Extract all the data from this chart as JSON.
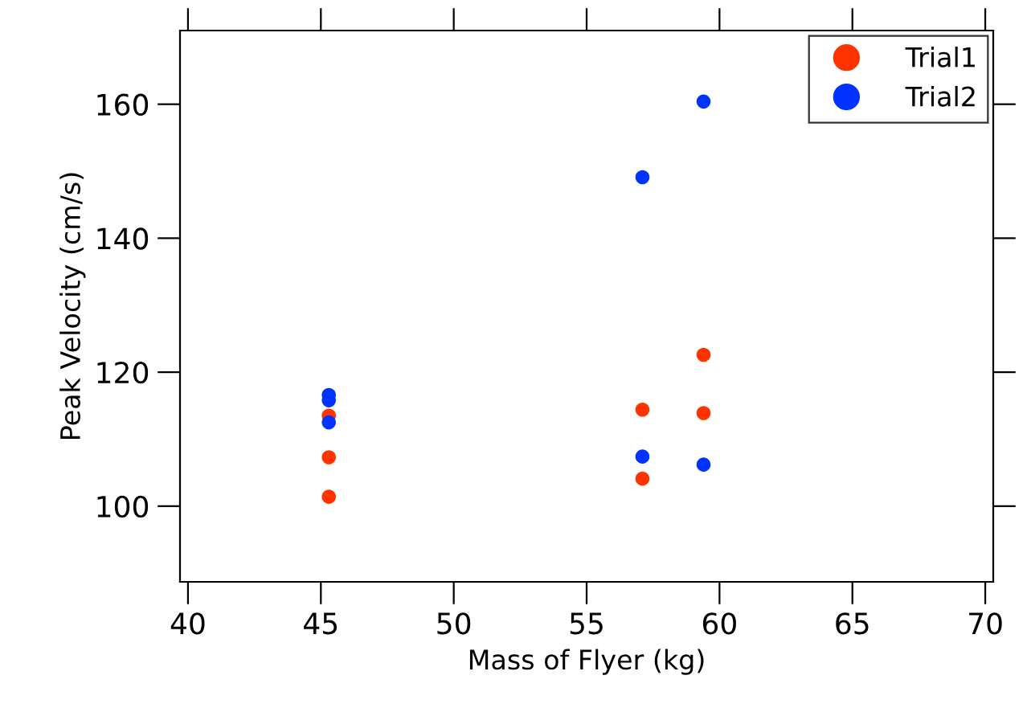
{
  "chart_data": {
    "type": "scatter",
    "xlabel": "Mass of Flyer (kg)",
    "ylabel": "Peak Velocity (cm/s)",
    "xlim": [
      39.7,
      70.3
    ],
    "xticks": [
      40,
      45,
      50,
      55,
      60,
      65,
      70
    ],
    "ylim": [
      88.7,
      171
    ],
    "yticks": [
      100,
      120,
      140,
      160
    ],
    "grid": false,
    "legend": "top right",
    "marker": "circle",
    "series": [
      {
        "name": "Trial1",
        "color": "#ff3300",
        "x": [
          45.3,
          45.3,
          45.3,
          57.1,
          57.1,
          59.4,
          59.4
        ],
        "values": [
          113.5,
          107.3,
          101.4,
          114.4,
          104.1,
          122.6,
          113.9
        ]
      },
      {
        "name": "Trial2",
        "color": "#0033ff",
        "x": [
          45.3,
          45.3,
          45.3,
          57.1,
          57.1,
          59.4,
          59.4
        ],
        "values": [
          116.6,
          115.8,
          112.5,
          149.1,
          107.4,
          160.4,
          106.2
        ]
      }
    ]
  }
}
